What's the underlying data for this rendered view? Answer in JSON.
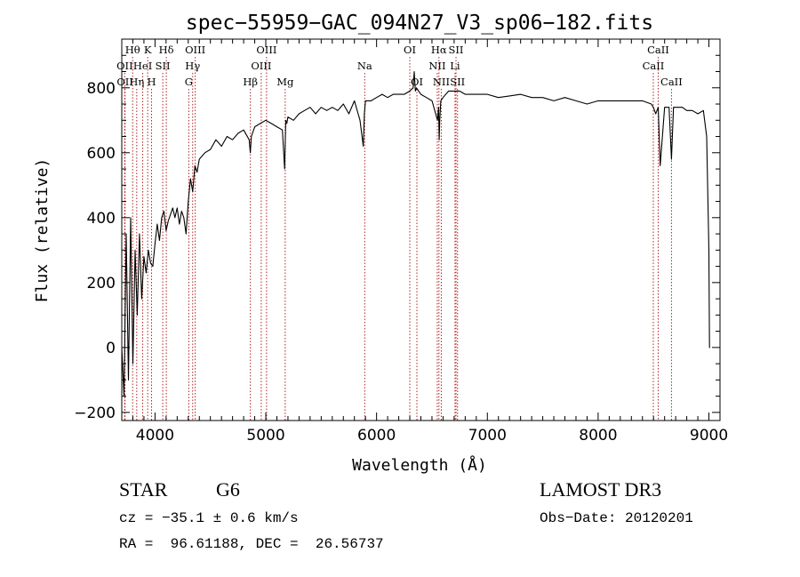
{
  "chart_data": {
    "type": "line",
    "title": "spec−55959−GAC_094N27_V3_sp06−182.fits",
    "xlabel": "Wavelength (Å)",
    "ylabel": "Flux (relative)",
    "xlim": [
      3700,
      9100
    ],
    "ylim": [
      -225,
      950
    ],
    "xticks": [
      4000,
      5000,
      6000,
      7000,
      8000,
      9000
    ],
    "yticks": [
      -200,
      0,
      200,
      400,
      600,
      800
    ],
    "line_color": "#000000",
    "marker_color": "#b22222",
    "series": [
      {
        "x": [
          3700,
          3720,
          3740,
          3760,
          3780,
          3800,
          3820,
          3840,
          3860,
          3880,
          3900,
          3920,
          3940,
          3960,
          3980,
          4000,
          4020,
          4040,
          4060,
          4080,
          4100,
          4120,
          4140,
          4160,
          4180,
          4200,
          4220,
          4240,
          4260,
          4280,
          4300,
          4320,
          4340,
          4360,
          4380,
          4400,
          4450,
          4500,
          4550,
          4600,
          4650,
          4700,
          4750,
          4800,
          4850,
          4860,
          4870,
          4900,
          4950,
          5000,
          5050,
          5100,
          5150,
          5170,
          5180,
          5190,
          5200,
          5250,
          5300,
          5350,
          5400,
          5450,
          5500,
          5550,
          5600,
          5650,
          5700,
          5750,
          5800,
          5850,
          5880,
          5890,
          5900,
          5950,
          6000,
          6050,
          6100,
          6150,
          6200,
          6250,
          6300,
          6330,
          6340,
          6350,
          6360,
          6400,
          6450,
          6500,
          6550,
          6560,
          6565,
          6570,
          6580,
          6600,
          6650,
          6700,
          6750,
          6800,
          6850,
          6900,
          6950,
          7000,
          7100,
          7200,
          7300,
          7400,
          7500,
          7600,
          7700,
          7800,
          7900,
          8000,
          8100,
          8200,
          8300,
          8400,
          8480,
          8498,
          8520,
          8542,
          8560,
          8600,
          8640,
          8662,
          8680,
          8720,
          8760,
          8800,
          8850,
          8900,
          8950,
          8980,
          9000,
          9005,
          9010
        ],
        "y": [
          0,
          -150,
          350,
          -100,
          400,
          -50,
          300,
          100,
          350,
          150,
          280,
          230,
          300,
          260,
          250,
          320,
          380,
          330,
          400,
          420,
          360,
          390,
          410,
          430,
          400,
          430,
          380,
          420,
          400,
          350,
          450,
          520,
          480,
          560,
          540,
          580,
          600,
          610,
          640,
          620,
          650,
          640,
          660,
          670,
          640,
          600,
          650,
          680,
          690,
          700,
          690,
          680,
          670,
          550,
          700,
          690,
          710,
          700,
          720,
          730,
          740,
          720,
          740,
          730,
          740,
          730,
          750,
          720,
          760,
          700,
          620,
          720,
          760,
          760,
          770,
          780,
          770,
          780,
          780,
          780,
          790,
          800,
          850,
          790,
          800,
          780,
          770,
          760,
          700,
          740,
          640,
          700,
          760,
          770,
          790,
          790,
          790,
          780,
          780,
          780,
          780,
          780,
          770,
          775,
          780,
          770,
          770,
          760,
          770,
          760,
          750,
          760,
          760,
          760,
          760,
          760,
          750,
          740,
          720,
          740,
          560,
          740,
          740,
          580,
          740,
          740,
          740,
          730,
          730,
          720,
          730,
          650,
          300,
          0,
          0
        ],
        "name": ""
      }
    ],
    "spectral_lines": [
      {
        "label": "Hθ",
        "x": 3798,
        "row": 0
      },
      {
        "label": "OII",
        "x": 3727,
        "row": 1
      },
      {
        "label": "OII",
        "x": 3729,
        "row": 2
      },
      {
        "label": "K",
        "x": 3934,
        "row": 0
      },
      {
        "label": "HeI",
        "x": 3889,
        "row": 1
      },
      {
        "label": "Hη",
        "x": 3835,
        "row": 2
      },
      {
        "label": "Hδ",
        "x": 4102,
        "row": 0
      },
      {
        "label": "SII",
        "x": 4070,
        "row": 1
      },
      {
        "label": "H",
        "x": 3969,
        "row": 2
      },
      {
        "label": "OIII",
        "x": 4363,
        "row": 0
      },
      {
        "label": "Hγ",
        "x": 4340,
        "row": 1
      },
      {
        "label": "G",
        "x": 4305,
        "row": 2
      },
      {
        "label": "OIII",
        "x": 5007,
        "row": 0
      },
      {
        "label": "OIII",
        "x": 4959,
        "row": 1
      },
      {
        "label": "Hβ",
        "x": 4861,
        "row": 2
      },
      {
        "label": "Mg",
        "x": 5175,
        "row": 2
      },
      {
        "label": "Na",
        "x": 5893,
        "row": 1
      },
      {
        "label": "OI",
        "x": 6300,
        "row": 0
      },
      {
        "label": "OI",
        "x": 6364,
        "row": 2
      },
      {
        "label": "Hα",
        "x": 6563,
        "row": 0
      },
      {
        "label": "SII",
        "x": 6717,
        "row": 0
      },
      {
        "label": "NII",
        "x": 6548,
        "row": 1
      },
      {
        "label": "Li",
        "x": 6708,
        "row": 1
      },
      {
        "label": "NII",
        "x": 6584,
        "row": 2
      },
      {
        "label": "SII",
        "x": 6731,
        "row": 2
      },
      {
        "label": "CaII",
        "x": 8542,
        "row": 0
      },
      {
        "label": "CaII",
        "x": 8498,
        "row": 1
      },
      {
        "label": "CaII",
        "x": 8662,
        "row": 2
      }
    ]
  },
  "info": {
    "object_class": "STAR",
    "subclass": "G6",
    "survey": "LAMOST DR3",
    "cz": "cz = −35.1 ± 0.6 km/s",
    "obs_date": "Obs−Date: 20120201",
    "coords": "RA =  96.61188, DEC =  26.56737"
  }
}
